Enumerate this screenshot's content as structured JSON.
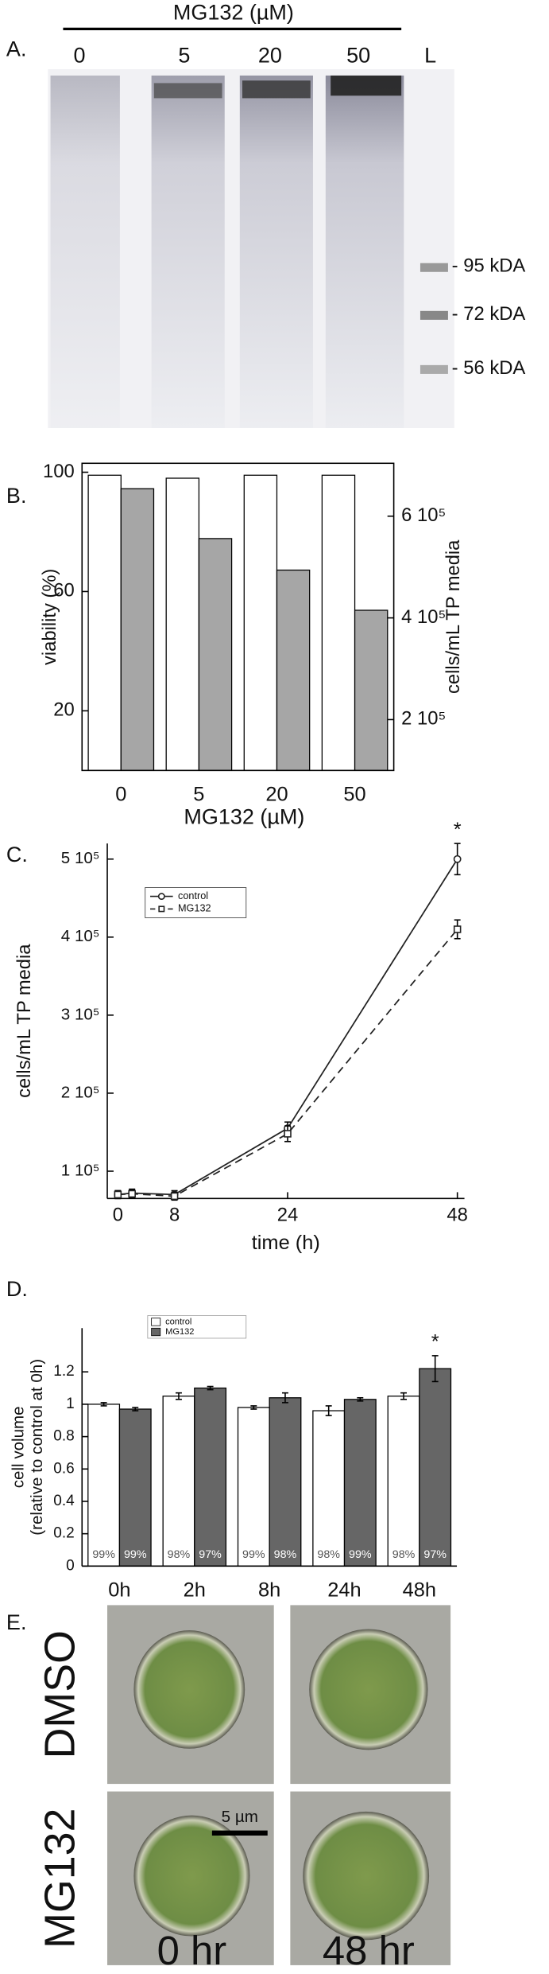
{
  "panel_a": {
    "label": "A.",
    "title": "MG132  (µM)",
    "lanes": [
      "0",
      "5",
      "20",
      "50",
      "L"
    ],
    "markers": [
      "- 95 kDA",
      "- 72 kDA",
      "- 56 kDA"
    ]
  },
  "chart_data": [
    {
      "type": "bar",
      "panel_label": "B.",
      "categories": [
        "0",
        "5",
        "20",
        "50"
      ],
      "x_label": "MG132  (µM)",
      "y_label": "viability (%)",
      "y2_label": "cells/mL TP media",
      "series": [
        {
          "color": "#ffffff",
          "values": [
            99,
            98,
            99,
            99
          ]
        },
        {
          "color": "#a6a6a6",
          "axis": "y2",
          "values": [
            654000,
            556000,
            494000,
            415000
          ]
        }
      ],
      "ylim": [
        0,
        103
      ],
      "yticks": [
        20,
        60,
        100
      ],
      "y2lim": [
        100000,
        704000
      ],
      "y2ticks": [
        {
          "value": 200000,
          "label": "2 10⁵"
        },
        {
          "value": 400000,
          "label": "4 10⁵"
        },
        {
          "value": 600000,
          "label": "6 10⁵"
        }
      ],
      "frame": "box"
    },
    {
      "type": "line",
      "panel_label": "C.",
      "x": [
        0,
        2,
        8,
        24,
        48
      ],
      "x_label": "time (h)",
      "y_label": "cells/mL TP media",
      "annotation": "*",
      "legend": "upper left",
      "series": [
        {
          "name": "control",
          "color": "#222222",
          "marker": "circle",
          "line_style": "solid",
          "values": [
            70000,
            72000,
            70000,
            155000,
            500000
          ],
          "errors": [
            5000,
            5000,
            5000,
            8000,
            20000
          ]
        },
        {
          "name": "MG132",
          "color": "#222222",
          "marker": "square",
          "line_style": "dashed",
          "values": [
            70000,
            71000,
            68000,
            148000,
            410000
          ],
          "errors": [
            5000,
            5000,
            5000,
            10000,
            12000
          ]
        }
      ],
      "xlim": [
        -1.5,
        49
      ],
      "xticks": [
        0,
        8,
        24,
        48
      ],
      "ylim": [
        65000,
        520000
      ],
      "yticks": [
        {
          "value": 100000,
          "label": "1 10⁵"
        },
        {
          "value": 200000,
          "label": "2 10⁵"
        },
        {
          "value": 300000,
          "label": "3 10⁵"
        },
        {
          "value": 400000,
          "label": "4 10⁵"
        },
        {
          "value": 500000,
          "label": "5 10⁵"
        }
      ],
      "frame": "axes"
    },
    {
      "type": "bar",
      "panel_label": "D.",
      "categories": [
        "0h",
        "2h",
        "8h",
        "24h",
        "48h"
      ],
      "y_label": [
        "cell volume",
        "(relative to control at 0h)"
      ],
      "annotation": "*",
      "legend": "upper left",
      "series": [
        {
          "name": "control",
          "color": "#ffffff",
          "values": [
            1.0,
            1.05,
            0.98,
            0.96,
            1.05
          ],
          "errors": [
            0.01,
            0.02,
            0.01,
            0.03,
            0.02
          ],
          "bar_labels": [
            "99%",
            "98%",
            "99%",
            "98%",
            "98%"
          ]
        },
        {
          "name": "MG132",
          "color": "#666666",
          "values": [
            0.97,
            1.1,
            1.04,
            1.03,
            1.22
          ],
          "errors": [
            0.01,
            0.01,
            0.03,
            0.01,
            0.08
          ],
          "bar_labels": [
            "99%",
            "97%",
            "98%",
            "99%",
            "97%"
          ]
        }
      ],
      "ylim": [
        0,
        1.47
      ],
      "yticks": [
        0,
        0.2,
        0.4,
        0.6,
        0.8,
        1,
        1.2
      ],
      "frame": "axes"
    }
  ],
  "panel_e": {
    "label": "E.",
    "rows": [
      "DMSO",
      "MG132"
    ],
    "columns": [
      "0 hr",
      "48 hr"
    ],
    "scale_bar": "5 µm"
  }
}
